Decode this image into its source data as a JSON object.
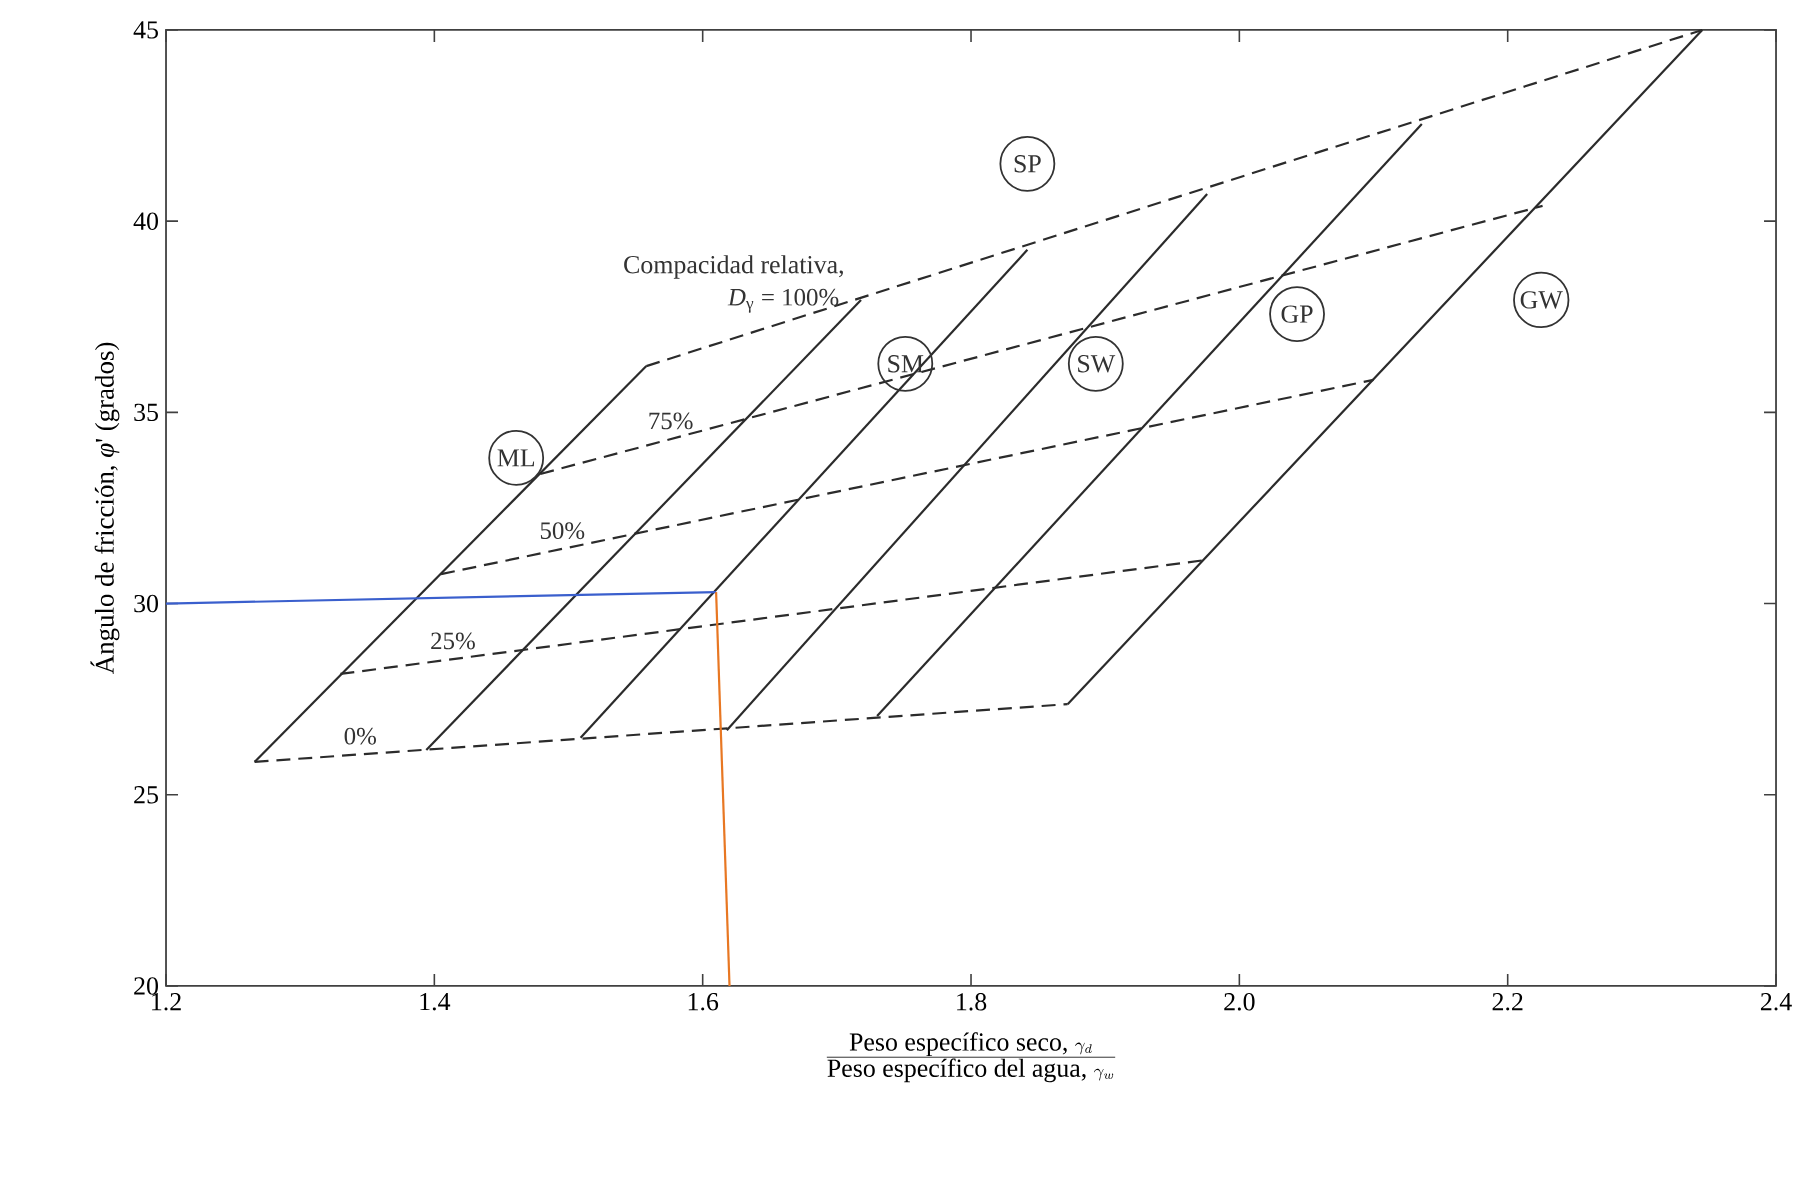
{
  "chart_data": {
    "type": "line",
    "xlabel": "\\frac{\\mbox{Peso específico seco, }\\gamma_d}{\\mbox{Peso específico del agua, }\\gamma_w}",
    "ylabel": "Ángulo de fricción, *φ*' (grados)",
    "xlim": [
      1.2,
      2.4
    ],
    "ylim": [
      20,
      45
    ],
    "xticks": [
      1.2,
      1.4,
      1.6,
      1.8,
      {
        "value": 2.0,
        "label": "2.0"
      },
      2.2,
      2.4
    ],
    "yticks": [
      20,
      25,
      30,
      35,
      40,
      45
    ],
    "series": [
      {
        "color": "#2b2b2b",
        "line_style": "solid",
        "x": [
          1.266,
          1.558
        ],
        "values": [
          25.86,
          36.21
        ]
      },
      {
        "color": "#2b2b2b",
        "line_style": "solid",
        "x": [
          1.394,
          1.718
        ],
        "values": [
          26.17,
          37.94
        ]
      },
      {
        "color": "#2b2b2b",
        "line_style": "solid",
        "x": [
          1.509,
          1.842
        ],
        "values": [
          26.49,
          39.25
        ]
      },
      {
        "color": "#2b2b2b",
        "line_style": "solid",
        "x": [
          1.618,
          1.976
        ],
        "values": [
          26.69,
          40.71
        ]
      },
      {
        "color": "#2b2b2b",
        "line_style": "solid",
        "x": [
          1.73,
          2.136
        ],
        "values": [
          27.06,
          42.54
        ]
      },
      {
        "color": "#2b2b2b",
        "line_style": "solid",
        "x": [
          1.872,
          2.345
        ],
        "values": [
          27.37,
          45.0
        ]
      },
      {
        "name": "0%",
        "color": "#2b2b2b",
        "line_style": "dashed",
        "x": [
          1.266,
          1.872
        ],
        "values": [
          25.86,
          27.37
        ]
      },
      {
        "name": "25%",
        "color": "#2b2b2b",
        "line_style": "dashed",
        "x": [
          1.33,
          1.975
        ],
        "values": [
          28.16,
          31.14
        ]
      },
      {
        "name": "50%",
        "color": "#2b2b2b",
        "line_style": "dashed",
        "x": [
          1.405,
          2.1
        ],
        "values": [
          30.77,
          35.85
        ]
      },
      {
        "name": "75%",
        "color": "#2b2b2b",
        "line_style": "dashed",
        "x": [
          1.479,
          2.226
        ],
        "values": [
          33.39,
          40.4
        ]
      },
      {
        "name": "*D*$_{γ}$ = 100%",
        "color": "#2b2b2b",
        "line_style": "dashed",
        "x": [
          1.558,
          2.345
        ],
        "values": [
          36.21,
          45.0
        ]
      },
      {
        "color": "#3a5fcd",
        "line_style": "solid",
        "x": [
          1.2,
          1.61
        ],
        "values": [
          30.0,
          30.3
        ]
      },
      {
        "color": "#e87722",
        "line_style": "solid",
        "x": [
          1.61,
          1.62
        ],
        "values": [
          30.3,
          20
        ]
      }
    ],
    "annotations": [
      "Compacidad relativa,",
      {
        "text": "ML",
        "x": 1.461,
        "y": 33.81
      },
      {
        "text": "SM",
        "x": 1.751,
        "y": 36.27
      },
      {
        "text": "SW",
        "x": 1.893,
        "y": 36.27
      },
      {
        "text": "SP",
        "x": 1.842,
        "y": 41.5
      },
      {
        "text": "GP",
        "x": 2.043,
        "y": 37.57
      },
      {
        "text": "GW",
        "x": 2.225,
        "y": 37.94
      }
    ]
  }
}
